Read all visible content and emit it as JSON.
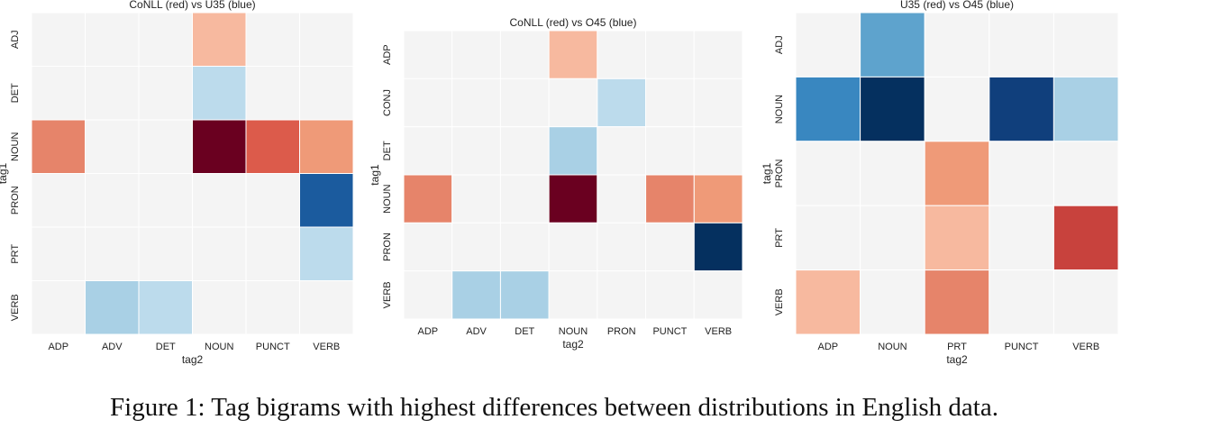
{
  "caption": "Figure 1: Tag bigrams with highest differences between distributions in English data.",
  "colors": {
    "red_scale": [
      "#f4f4f4",
      "#f7b99f",
      "#ef9a78",
      "#e6846a",
      "#dc5b4b",
      "#c8423d",
      "#6a0020"
    ],
    "blue_scale": [
      "#f4f4f4",
      "#bcdbec",
      "#a9d0e5",
      "#5ea3cd",
      "#3987c0",
      "#1b5b9e",
      "#103f7c",
      "#05305f"
    ]
  },
  "chart_data": [
    {
      "type": "heatmap",
      "title": "CoNLL (red) vs U35 (blue)",
      "xlabel": "tag2",
      "ylabel": "tag1",
      "x_categories": [
        "ADP",
        "ADV",
        "DET",
        "NOUN",
        "PUNCT",
        "VERB"
      ],
      "y_categories": [
        "ADJ",
        "DET",
        "NOUN",
        "PRON",
        "PRT",
        "VERB"
      ],
      "values": [
        [
          0,
          0,
          0,
          1,
          0,
          0
        ],
        [
          0,
          0,
          0,
          -1,
          0,
          0
        ],
        [
          3,
          0,
          0,
          6,
          4,
          2
        ],
        [
          0,
          0,
          0,
          0,
          0,
          -5
        ],
        [
          0,
          0,
          0,
          0,
          0,
          -1
        ],
        [
          0,
          -2,
          -1,
          0,
          0,
          0
        ]
      ]
    },
    {
      "type": "heatmap",
      "title": "CoNLL (red) vs O45 (blue)",
      "xlabel": "tag2",
      "ylabel": "tag1",
      "x_categories": [
        "ADP",
        "ADV",
        "DET",
        "NOUN",
        "PRON",
        "PUNCT",
        "VERB"
      ],
      "y_categories": [
        "ADP",
        "CONJ",
        "DET",
        "NOUN",
        "PRON",
        "VERB"
      ],
      "values": [
        [
          0,
          0,
          0,
          1,
          0,
          0,
          0
        ],
        [
          0,
          0,
          0,
          0,
          -1,
          0,
          0
        ],
        [
          0,
          0,
          0,
          -2,
          0,
          0,
          0
        ],
        [
          3,
          0,
          0,
          6,
          0,
          3,
          2
        ],
        [
          0,
          0,
          0,
          0,
          0,
          0,
          -7
        ],
        [
          0,
          -2,
          -2,
          0,
          0,
          0,
          0
        ]
      ]
    },
    {
      "type": "heatmap",
      "title": "U35 (red) vs O45 (blue)",
      "xlabel": "tag2",
      "ylabel": "tag1",
      "x_categories": [
        "ADP",
        "NOUN",
        "PRT",
        "PUNCT",
        "VERB"
      ],
      "y_categories": [
        "ADJ",
        "NOUN",
        "PRON",
        "PRT",
        "VERB"
      ],
      "values": [
        [
          0,
          -3,
          0,
          0,
          0
        ],
        [
          -4,
          -7,
          0,
          -6,
          -2
        ],
        [
          0,
          0,
          2,
          0,
          0
        ],
        [
          0,
          0,
          1,
          0,
          5
        ],
        [
          1,
          0,
          3,
          0,
          0
        ]
      ]
    }
  ]
}
